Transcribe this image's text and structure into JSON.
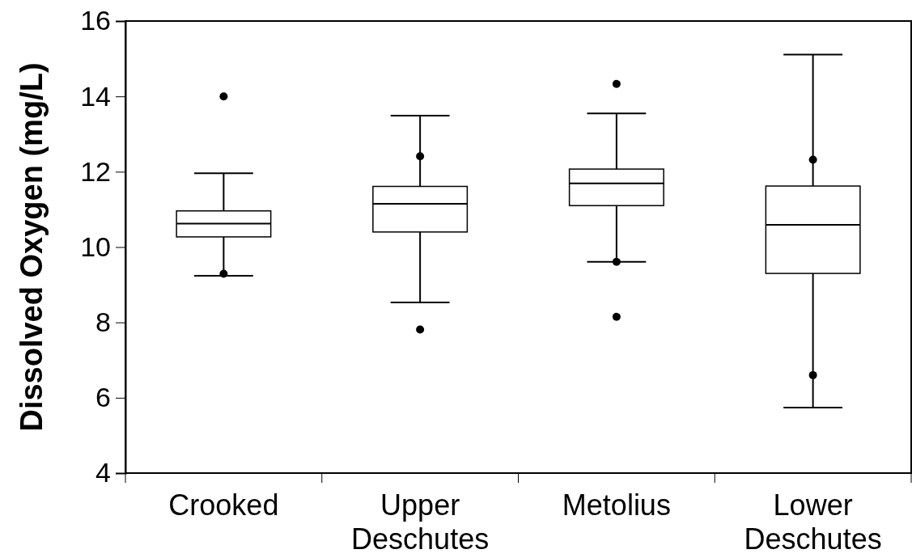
{
  "chart_data": {
    "type": "box",
    "ylabel": "Dissolved Oxygen (mg/L)",
    "categories": [
      "Crooked",
      "Upper Deschutes",
      "Metolius",
      "Lower Deschutes"
    ],
    "boxes": [
      {
        "low": 9.24,
        "q1": 10.27,
        "median": 10.62,
        "q3": 10.96,
        "high": 11.96,
        "outliers": [
          14.0,
          9.29
        ]
      },
      {
        "low": 8.53,
        "q1": 10.4,
        "median": 11.15,
        "q3": 11.61,
        "high": 13.49,
        "outliers": [
          12.41,
          7.81
        ]
      },
      {
        "low": 9.61,
        "q1": 11.1,
        "median": 11.69,
        "q3": 12.07,
        "high": 13.55,
        "outliers": [
          14.33,
          9.61,
          8.15
        ]
      },
      {
        "low": 5.74,
        "q1": 9.3,
        "median": 10.59,
        "q3": 11.62,
        "high": 15.11,
        "outliers": [
          12.32,
          6.6
        ]
      }
    ],
    "ylim": [
      4,
      16
    ],
    "yticks": [
      4,
      6,
      8,
      10,
      12,
      14,
      16
    ],
    "grid": false
  }
}
